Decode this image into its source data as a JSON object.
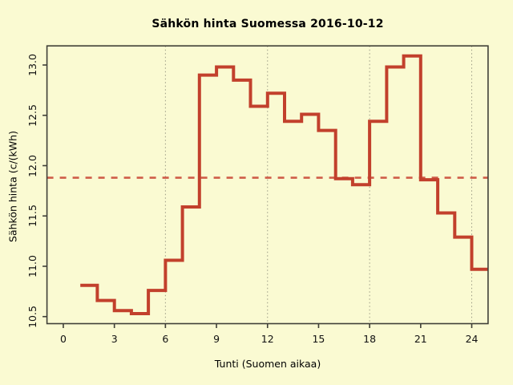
{
  "chart_data": {
    "type": "line",
    "subtype": "step",
    "title": "Sähkön hinta Suomessa 2016-10-12",
    "xlabel": "Tunti (Suomen aikaa)",
    "ylabel": "Sähkön hinta (c/(kWh)",
    "x_ticks": [
      0,
      3,
      6,
      9,
      12,
      15,
      18,
      21,
      24
    ],
    "y_ticks": [
      10.5,
      11.0,
      11.5,
      12.0,
      12.5,
      13.0
    ],
    "y_tick_labels": [
      "10.5",
      "11.0",
      "11.5",
      "12.0",
      "12.5",
      "13.0"
    ],
    "xlim": [
      -0.96,
      24.96
    ],
    "ylim": [
      10.43,
      13.19
    ],
    "grid_vertical_at_hours": [
      6,
      12,
      18,
      24
    ],
    "mean_line_value": 11.88,
    "mean_line_style": "dashed",
    "hours_start_of_interval": [
      1,
      2,
      3,
      4,
      5,
      6,
      7,
      8,
      9,
      10,
      11,
      12,
      13,
      14,
      15,
      16,
      17,
      18,
      19,
      20,
      21,
      22,
      23,
      24
    ],
    "values_c_per_kwh": [
      10.81,
      10.66,
      10.56,
      10.53,
      10.76,
      11.06,
      11.59,
      12.9,
      12.98,
      12.85,
      12.59,
      12.72,
      12.44,
      12.51,
      12.35,
      11.87,
      11.81,
      12.44,
      12.98,
      13.09,
      11.86,
      11.53,
      11.29,
      10.97
    ],
    "step_end_hour": 25,
    "legend": "none",
    "colors": {
      "background": "#FAFAD2",
      "step_line": "#C2402C",
      "mean_line": "#CF5C48",
      "grid": "#9B9B85",
      "box": "#3F3F37",
      "text": "#000000",
      "tick_text": "#111111"
    }
  }
}
